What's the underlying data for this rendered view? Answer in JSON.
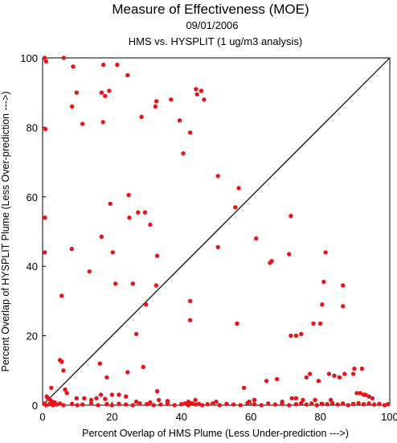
{
  "chart_data": {
    "type": "scatter",
    "title": "Measure of Effectiveness (MOE)",
    "subtitle": "09/01/2006",
    "subtitle2": "HMS vs. HYSPLIT  (1 ug/m3 analysis)",
    "xlabel": "Percent Overlap of HMS Plume (Less Under-prediction --->)",
    "ylabel": "Percent Overlap of HYSPLIT Plume (Less Over-prediction --->)",
    "xlim": [
      0,
      100
    ],
    "ylim": [
      0,
      100
    ],
    "xticks": [
      "0",
      "20",
      "40",
      "60",
      "80",
      "100"
    ],
    "yticks": [
      "0",
      "20",
      "40",
      "60",
      "80",
      "100"
    ],
    "point_color": "#e8141a",
    "reference_line": "1:1 diagonal",
    "x": [
      0.6,
      1.0,
      6.1,
      8.8,
      17.5,
      21.5,
      24.5,
      19.2,
      18.0,
      17.0,
      9.8,
      8.5,
      11.5,
      17.4,
      32.8,
      32.5,
      37.0,
      28.5,
      39.5,
      42.5,
      40.5,
      44.2,
      44.5,
      45.7,
      46.5,
      0.8,
      0.7,
      0.6,
      0.5,
      5.5,
      8.4,
      24.8,
      19.5,
      25.0,
      20.2,
      27.5,
      17.0,
      21.0,
      13.5,
      29.5,
      31.0,
      33.0,
      26.0,
      32.7,
      29.8,
      27.0,
      42.5,
      42.5,
      33.0,
      50.5,
      56.5,
      55.5,
      50.5,
      61.5,
      66.0,
      65.5,
      71.5,
      71.0,
      81.5,
      81.0,
      80.5,
      86.5,
      86.5,
      56.0,
      73.0,
      74.5,
      78.0,
      80.0,
      71.5,
      5.0,
      5.5,
      2.5,
      6.0,
      6.5,
      16.5,
      24.5,
      29.0,
      18.5,
      16.8,
      20.0,
      7.0,
      15.5,
      9.8,
      1.5,
      77.0,
      84.0,
      85.5,
      89.5,
      92.0,
      89.8,
      87.0,
      64.5,
      67.5,
      58.0,
      76.0,
      79.5,
      82.5,
      1.0,
      2.0,
      3.0,
      4.0,
      5.0,
      6.0,
      8.5,
      10.0,
      11.5,
      14.0,
      16.0,
      18.5,
      20.0,
      22.0,
      24.0,
      26.0,
      28.0,
      30.0,
      32.0,
      34.0,
      36.0,
      38.0,
      40.0,
      41.0,
      42.0,
      43.0,
      44.0,
      45.0,
      46.0,
      47.5,
      49.0,
      51.0,
      53.0,
      55.0,
      57.0,
      59.0,
      61.0,
      63.0,
      65.0,
      67.0,
      69.0,
      71.0,
      73.0,
      74.5,
      76.0,
      77.5,
      79.0,
      80.5,
      82.0,
      83.5,
      85.0,
      86.5,
      88.0,
      89.5,
      91.0,
      92.5,
      94.0,
      95.5,
      97.0,
      98.5,
      99.5,
      90.5,
      91.5,
      92.5,
      93.0,
      94.0,
      95.0,
      73.0,
      75.0,
      78.5,
      83.0,
      71.8,
      69.0,
      61.0,
      59.5,
      50.0,
      44.0,
      42.0,
      36.0,
      31.0,
      27.0,
      33.5,
      24.0,
      22.0,
      18.0,
      14.0,
      12.0,
      3.5,
      2.2,
      1.2,
      2.8
    ],
    "y": [
      100.0,
      99.0,
      100.0,
      97.5,
      98.0,
      98.0,
      95.0,
      90.5,
      89.0,
      90.0,
      90.0,
      86.0,
      81.0,
      81.5,
      87.5,
      86.0,
      88.0,
      83.0,
      82.0,
      78.5,
      72.5,
      91.0,
      89.5,
      90.5,
      88.0,
      79.5,
      54.0,
      44.0,
      0.5,
      31.5,
      45.0,
      60.5,
      58.0,
      54.0,
      44.0,
      55.5,
      48.5,
      35.0,
      38.5,
      55.5,
      52.0,
      43.0,
      35.0,
      34.5,
      29.0,
      20.5,
      30.0,
      24.5,
      4.0,
      66.0,
      62.5,
      57.0,
      45.5,
      48.0,
      41.5,
      41.0,
      54.5,
      43.5,
      44.0,
      35.5,
      29.0,
      34.5,
      28.5,
      23.5,
      20.0,
      20.5,
      23.5,
      23.5,
      20.0,
      13.0,
      12.5,
      5.0,
      10.0,
      4.5,
      12.0,
      9.5,
      11.0,
      8.0,
      3.0,
      3.0,
      3.5,
      2.0,
      2.0,
      2.0,
      9.0,
      8.5,
      8.0,
      9.0,
      10.5,
      10.5,
      9.0,
      7.0,
      7.5,
      5.0,
      8.0,
      7.0,
      9.0,
      0.0,
      0.3,
      0.0,
      0.2,
      0.5,
      0.0,
      0.4,
      0.0,
      0.2,
      0.5,
      0.0,
      0.3,
      0.0,
      0.4,
      0.2,
      0.0,
      0.5,
      0.3,
      0.0,
      0.2,
      0.4,
      0.0,
      0.3,
      0.5,
      0.0,
      0.6,
      0.2,
      0.4,
      0.0,
      0.3,
      0.5,
      0.0,
      0.4,
      0.2,
      0.0,
      0.6,
      0.3,
      0.0,
      0.5,
      0.2,
      0.4,
      0.0,
      0.3,
      0.6,
      0.2,
      0.5,
      0.0,
      0.4,
      0.3,
      0.6,
      0.2,
      0.5,
      0.0,
      0.4,
      0.6,
      0.3,
      0.5,
      0.2,
      0.4,
      0.0,
      0.3,
      3.5,
      3.5,
      3.0,
      3.0,
      2.5,
      2.0,
      2.0,
      1.5,
      1.5,
      1.5,
      2.0,
      1.0,
      1.5,
      1.0,
      1.0,
      1.5,
      1.0,
      1.2,
      0.8,
      1.0,
      1.5,
      2.5,
      3.0,
      1.8,
      1.5,
      2.0,
      0.8,
      1.5,
      2.5,
      1.0
    ]
  }
}
